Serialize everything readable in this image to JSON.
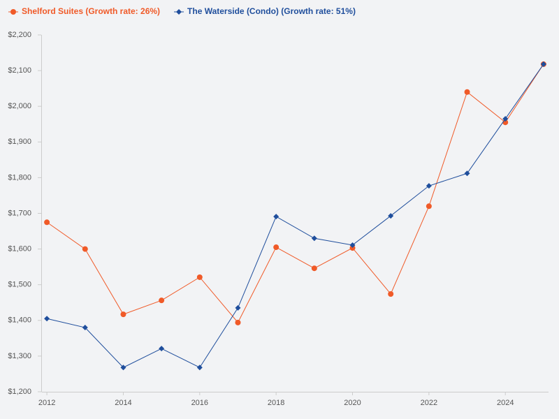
{
  "chart_data": {
    "type": "line",
    "x": [
      2012,
      2013,
      2014,
      2015,
      2016,
      2017,
      2018,
      2019,
      2020,
      2021,
      2022,
      2023,
      2024,
      2025
    ],
    "series": [
      {
        "name": "Shelford Suites (Growth rate: 26%)",
        "color": "#f05a28",
        "marker": "circle",
        "values": [
          1675,
          1600,
          1417,
          1456,
          1521,
          1394,
          1605,
          1546,
          1603,
          1474,
          1720,
          2040,
          1955,
          2118
        ]
      },
      {
        "name": "The Waterside (Condo) (Growth rate: 51%)",
        "color": "#1f4e9c",
        "marker": "diamond",
        "values": [
          1405,
          1380,
          1268,
          1321,
          1268,
          1435,
          1691,
          1630,
          1611,
          1693,
          1777,
          1812,
          1965,
          2118
        ]
      }
    ],
    "xlim": [
      2011.87,
      2025.13
    ],
    "xticks": [
      2012,
      2014,
      2016,
      2018,
      2020,
      2022,
      2024
    ],
    "ylim": [
      1200,
      2200
    ],
    "yticks": [
      {
        "value": 1200,
        "label": "$1,200"
      },
      {
        "value": 1300,
        "label": "$1,300"
      },
      {
        "value": 1400,
        "label": "$1,400"
      },
      {
        "value": 1500,
        "label": "$1,500"
      },
      {
        "value": 1600,
        "label": "$1,600"
      },
      {
        "value": 1700,
        "label": "$1,700"
      },
      {
        "value": 1800,
        "label": "$1,800"
      },
      {
        "value": 1900,
        "label": "$1,900"
      },
      {
        "value": 2000,
        "label": "$2,000"
      },
      {
        "value": 2100,
        "label": "$2,100"
      },
      {
        "value": 2200,
        "label": "$2,200"
      }
    ],
    "grid": false,
    "legend": "top-left"
  }
}
